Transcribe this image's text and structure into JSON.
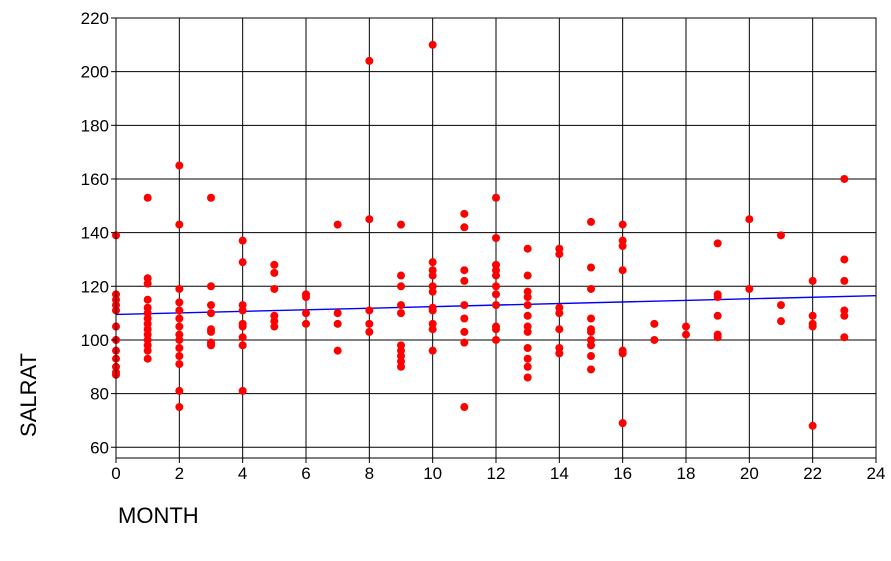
{
  "chart_data": {
    "type": "scatter",
    "title": "",
    "xlabel": "MONTH",
    "ylabel": "SALRAT",
    "xlim": [
      0,
      24
    ],
    "ylim": [
      56,
      220
    ],
    "xticks": [
      0,
      2,
      4,
      6,
      8,
      10,
      12,
      14,
      16,
      18,
      20,
      22,
      24
    ],
    "yticks": [
      60,
      80,
      100,
      120,
      140,
      160,
      180,
      200,
      220
    ],
    "grid": true,
    "legend": "none",
    "colors": {
      "points": "#ff0000",
      "fit_line": "#0000ff",
      "grid": "#000000"
    },
    "points": [
      [
        0,
        139
      ],
      [
        0,
        117
      ],
      [
        0,
        115
      ],
      [
        0,
        113
      ],
      [
        0,
        111
      ],
      [
        0,
        105
      ],
      [
        0,
        100
      ],
      [
        0,
        96
      ],
      [
        0,
        93
      ],
      [
        0,
        90
      ],
      [
        0,
        88
      ],
      [
        0,
        87
      ],
      [
        1,
        153
      ],
      [
        1,
        123
      ],
      [
        1,
        121
      ],
      [
        1,
        115
      ],
      [
        1,
        112
      ],
      [
        1,
        110
      ],
      [
        1,
        108
      ],
      [
        1,
        106
      ],
      [
        1,
        104
      ],
      [
        1,
        102
      ],
      [
        1,
        100
      ],
      [
        1,
        98
      ],
      [
        1,
        96
      ],
      [
        1,
        93
      ],
      [
        2,
        165
      ],
      [
        2,
        143
      ],
      [
        2,
        119
      ],
      [
        2,
        114
      ],
      [
        2,
        111
      ],
      [
        2,
        108
      ],
      [
        2,
        105
      ],
      [
        2,
        102
      ],
      [
        2,
        100
      ],
      [
        2,
        97
      ],
      [
        2,
        94
      ],
      [
        2,
        91
      ],
      [
        2,
        81
      ],
      [
        2,
        75
      ],
      [
        3,
        153
      ],
      [
        3,
        120
      ],
      [
        3,
        113
      ],
      [
        3,
        110
      ],
      [
        3,
        104
      ],
      [
        3,
        103
      ],
      [
        3,
        99
      ],
      [
        3,
        98
      ],
      [
        4,
        137
      ],
      [
        4,
        129
      ],
      [
        4,
        113
      ],
      [
        4,
        111
      ],
      [
        4,
        106
      ],
      [
        4,
        105
      ],
      [
        4,
        101
      ],
      [
        4,
        98
      ],
      [
        4,
        81
      ],
      [
        5,
        128
      ],
      [
        5,
        125
      ],
      [
        5,
        119
      ],
      [
        5,
        109
      ],
      [
        5,
        107
      ],
      [
        5,
        105
      ],
      [
        6,
        117
      ],
      [
        6,
        116
      ],
      [
        6,
        110
      ],
      [
        6,
        106
      ],
      [
        7,
        143
      ],
      [
        7,
        110
      ],
      [
        7,
        106
      ],
      [
        7,
        96
      ],
      [
        8,
        204
      ],
      [
        8,
        145
      ],
      [
        8,
        111
      ],
      [
        8,
        106
      ],
      [
        8,
        103
      ],
      [
        9,
        143
      ],
      [
        9,
        124
      ],
      [
        9,
        120
      ],
      [
        9,
        113
      ],
      [
        9,
        110
      ],
      [
        9,
        98
      ],
      [
        9,
        96
      ],
      [
        9,
        94
      ],
      [
        9,
        92
      ],
      [
        9,
        90
      ],
      [
        10,
        210
      ],
      [
        10,
        129
      ],
      [
        10,
        126
      ],
      [
        10,
        124
      ],
      [
        10,
        120
      ],
      [
        10,
        118
      ],
      [
        10,
        112
      ],
      [
        10,
        111
      ],
      [
        10,
        106
      ],
      [
        10,
        104
      ],
      [
        10,
        96
      ],
      [
        11,
        147
      ],
      [
        11,
        142
      ],
      [
        11,
        126
      ],
      [
        11,
        122
      ],
      [
        11,
        113
      ],
      [
        11,
        108
      ],
      [
        11,
        103
      ],
      [
        11,
        99
      ],
      [
        11,
        75
      ],
      [
        12,
        153
      ],
      [
        12,
        138
      ],
      [
        12,
        128
      ],
      [
        12,
        126
      ],
      [
        12,
        124
      ],
      [
        12,
        120
      ],
      [
        12,
        117
      ],
      [
        12,
        113
      ],
      [
        12,
        105
      ],
      [
        12,
        104
      ],
      [
        12,
        100
      ],
      [
        13,
        134
      ],
      [
        13,
        124
      ],
      [
        13,
        118
      ],
      [
        13,
        116
      ],
      [
        13,
        113
      ],
      [
        13,
        109
      ],
      [
        13,
        105
      ],
      [
        13,
        103
      ],
      [
        13,
        97
      ],
      [
        13,
        93
      ],
      [
        13,
        90
      ],
      [
        13,
        86
      ],
      [
        14,
        134
      ],
      [
        14,
        132
      ],
      [
        14,
        112
      ],
      [
        14,
        110
      ],
      [
        14,
        104
      ],
      [
        14,
        97
      ],
      [
        14,
        95
      ],
      [
        15,
        144
      ],
      [
        15,
        127
      ],
      [
        15,
        119
      ],
      [
        15,
        108
      ],
      [
        15,
        104
      ],
      [
        15,
        103
      ],
      [
        15,
        100
      ],
      [
        15,
        98
      ],
      [
        15,
        94
      ],
      [
        15,
        89
      ],
      [
        16,
        143
      ],
      [
        16,
        137
      ],
      [
        16,
        135
      ],
      [
        16,
        126
      ],
      [
        16,
        96
      ],
      [
        16,
        95
      ],
      [
        16,
        69
      ],
      [
        17,
        106
      ],
      [
        17,
        100
      ],
      [
        18,
        105
      ],
      [
        18,
        102
      ],
      [
        19,
        136
      ],
      [
        19,
        117
      ],
      [
        19,
        116
      ],
      [
        19,
        109
      ],
      [
        19,
        102
      ],
      [
        19,
        101
      ],
      [
        20,
        145
      ],
      [
        20,
        119
      ],
      [
        21,
        139
      ],
      [
        21,
        113
      ],
      [
        21,
        107
      ],
      [
        22,
        122
      ],
      [
        22,
        109
      ],
      [
        22,
        106
      ],
      [
        22,
        105
      ],
      [
        22,
        68
      ],
      [
        23,
        160
      ],
      [
        23,
        130
      ],
      [
        23,
        122
      ],
      [
        23,
        111
      ],
      [
        23,
        109
      ],
      [
        23,
        101
      ]
    ],
    "fit_line": {
      "x": [
        0,
        24
      ],
      "y": [
        109.5,
        116.5
      ]
    }
  }
}
